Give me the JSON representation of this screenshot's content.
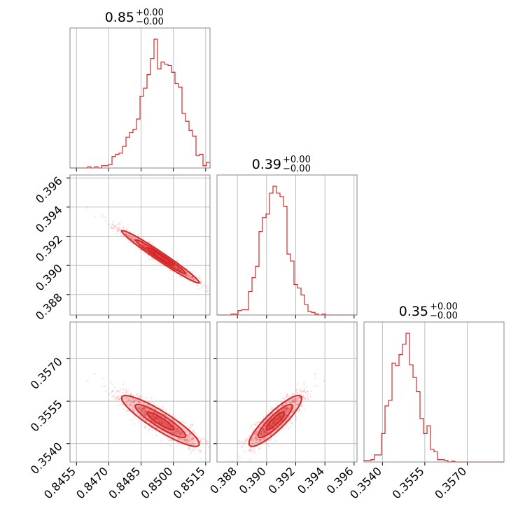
{
  "colors": {
    "series": "#d62728",
    "frame": "#888888",
    "grid": "#b8b8b8",
    "background": "#ffffff"
  },
  "chart_data": {
    "type": "corner",
    "params": [
      {
        "title_value": "0.85",
        "title_upper": "+0.00",
        "title_lower": "−0.00",
        "range": [
          0.8452,
          0.8517
        ],
        "ticks": [
          0.8455,
          0.847,
          0.8485,
          0.85,
          0.8515
        ],
        "tick_labels": [
          "0.8455",
          "0.8470",
          "0.8485",
          "0.8500",
          "0.8515"
        ],
        "mean": 0.8494,
        "sd": 0.0009
      },
      {
        "title_value": "0.39",
        "title_upper": "+0.00",
        "title_lower": "−0.00",
        "range": [
          0.3866,
          0.3962
        ],
        "ticks": [
          0.388,
          0.39,
          0.392,
          0.394,
          0.396
        ],
        "tick_labels": [
          "0.388",
          "0.390",
          "0.392",
          "0.394",
          "0.396"
        ],
        "mean": 0.3906,
        "sd": 0.0009
      },
      {
        "title_value": "0.35",
        "title_upper": "+0.00",
        "title_lower": "−0.00",
        "range": [
          0.35335,
          0.3583
        ],
        "ticks": [
          0.354,
          0.3555,
          0.357
        ],
        "tick_labels": [
          "0.3540",
          "0.3555",
          "0.3570"
        ],
        "mean": 0.3548,
        "sd": 0.00045
      }
    ],
    "correlations": {
      "p0_p1": -0.98,
      "p0_p2": -0.9,
      "p1_p2": 0.88
    },
    "grid": true
  }
}
